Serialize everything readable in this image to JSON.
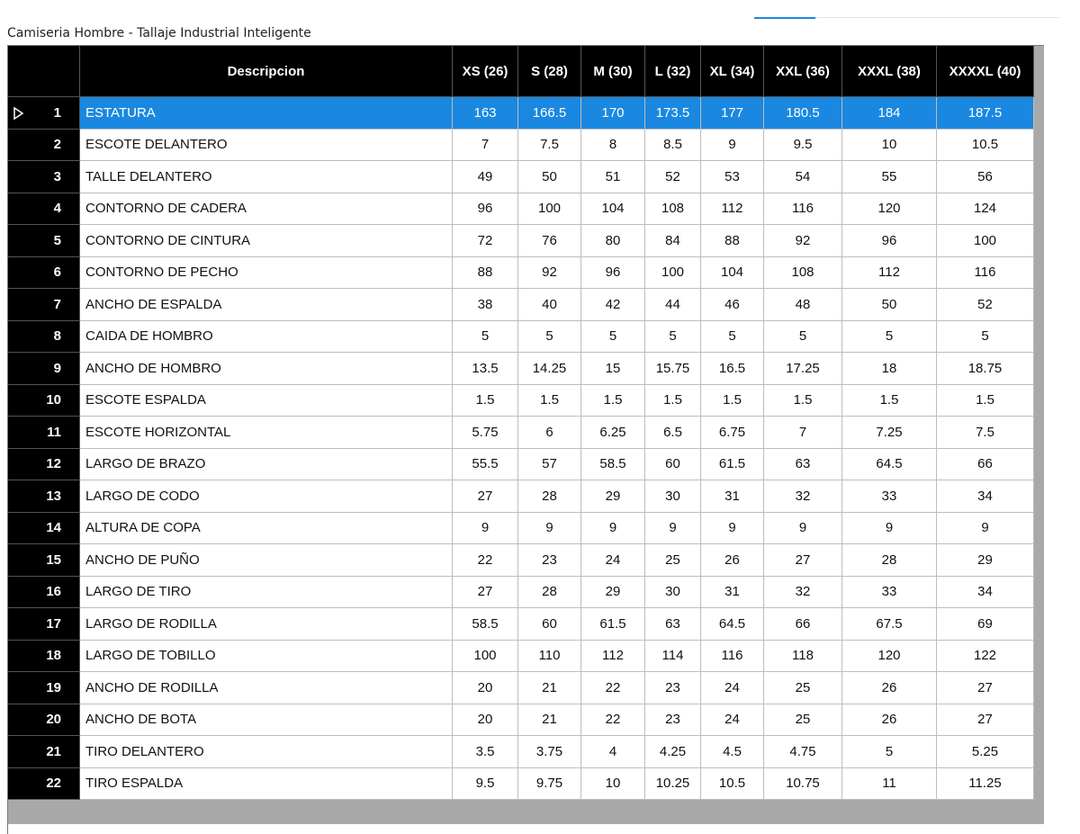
{
  "title": "Camiseria Hombre - Tallaje Industrial Inteligente",
  "table": {
    "columns": [
      "Descripcion",
      "XS (26)",
      "S (28)",
      "M (30)",
      "L (32)",
      "XL (34)",
      "XXL (36)",
      "XXXL (38)",
      "XXXXL (40)"
    ],
    "rows": [
      {
        "number": 1,
        "description": "ESTATURA",
        "values": [
          163,
          166.5,
          170,
          173.5,
          177,
          180.5,
          184,
          187.5
        ]
      },
      {
        "number": 2,
        "description": "ESCOTE DELANTERO",
        "values": [
          7,
          7.5,
          8,
          8.5,
          9,
          9.5,
          10,
          10.5
        ]
      },
      {
        "number": 3,
        "description": "TALLE DELANTERO",
        "values": [
          49,
          50,
          51,
          52,
          53,
          54,
          55,
          56
        ]
      },
      {
        "number": 4,
        "description": "CONTORNO DE CADERA",
        "values": [
          96,
          100,
          104,
          108,
          112,
          116,
          120,
          124
        ]
      },
      {
        "number": 5,
        "description": "CONTORNO DE CINTURA",
        "values": [
          72,
          76,
          80,
          84,
          88,
          92,
          96,
          100
        ]
      },
      {
        "number": 6,
        "description": "CONTORNO DE PECHO",
        "values": [
          88,
          92,
          96,
          100,
          104,
          108,
          112,
          116
        ]
      },
      {
        "number": 7,
        "description": "ANCHO DE ESPALDA",
        "values": [
          38,
          40,
          42,
          44,
          46,
          48,
          50,
          52
        ]
      },
      {
        "number": 8,
        "description": "CAIDA DE HOMBRO",
        "values": [
          5,
          5,
          5,
          5,
          5,
          5,
          5,
          5
        ]
      },
      {
        "number": 9,
        "description": "ANCHO DE HOMBRO",
        "values": [
          13.5,
          14.25,
          15,
          15.75,
          16.5,
          17.25,
          18,
          18.75
        ]
      },
      {
        "number": 10,
        "description": "ESCOTE ESPALDA",
        "values": [
          1.5,
          1.5,
          1.5,
          1.5,
          1.5,
          1.5,
          1.5,
          1.5
        ]
      },
      {
        "number": 11,
        "description": "ESCOTE HORIZONTAL",
        "values": [
          5.75,
          6,
          6.25,
          6.5,
          6.75,
          7,
          7.25,
          7.5
        ]
      },
      {
        "number": 12,
        "description": "LARGO DE BRAZO",
        "values": [
          55.5,
          57,
          58.5,
          60,
          61.5,
          63,
          64.5,
          66
        ]
      },
      {
        "number": 13,
        "description": "LARGO DE CODO",
        "values": [
          27,
          28,
          29,
          30,
          31,
          32,
          33,
          34
        ]
      },
      {
        "number": 14,
        "description": "ALTURA DE COPA",
        "values": [
          9,
          9,
          9,
          9,
          9,
          9,
          9,
          9
        ]
      },
      {
        "number": 15,
        "description": "ANCHO DE PUÑO",
        "values": [
          22,
          23,
          24,
          25,
          26,
          27,
          28,
          29
        ]
      },
      {
        "number": 16,
        "description": "LARGO DE TIRO",
        "values": [
          27,
          28,
          29,
          30,
          31,
          32,
          33,
          34
        ]
      },
      {
        "number": 17,
        "description": "LARGO DE RODILLA",
        "values": [
          58.5,
          60,
          61.5,
          63,
          64.5,
          66,
          67.5,
          69
        ]
      },
      {
        "number": 18,
        "description": "LARGO DE TOBILLO",
        "values": [
          100,
          110,
          112,
          114,
          116,
          118,
          120,
          122
        ]
      },
      {
        "number": 19,
        "description": "ANCHO DE RODILLA",
        "values": [
          20,
          21,
          22,
          23,
          24,
          25,
          26,
          27
        ]
      },
      {
        "number": 20,
        "description": "ANCHO DE BOTA",
        "values": [
          20,
          21,
          22,
          23,
          24,
          25,
          26,
          27
        ]
      },
      {
        "number": 21,
        "description": "TIRO DELANTERO",
        "values": [
          3.5,
          3.75,
          4,
          4.25,
          4.5,
          4.75,
          5,
          5.25
        ]
      },
      {
        "number": 22,
        "description": "TIRO ESPALDA",
        "values": [
          9.5,
          9.75,
          10,
          10.25,
          10.5,
          10.75,
          11,
          11.25
        ]
      }
    ]
  }
}
